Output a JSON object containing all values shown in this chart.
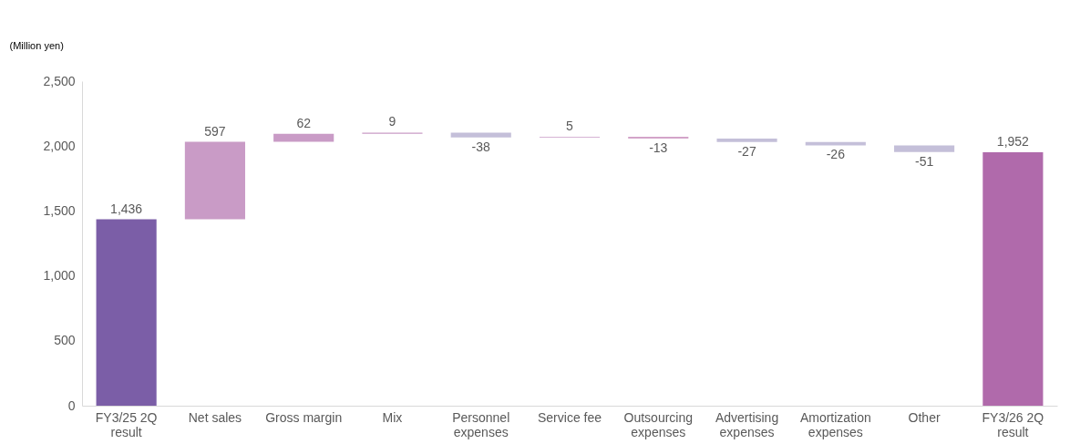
{
  "chart_data": {
    "type": "bar",
    "ylabel": "(Million yen)",
    "categories": [
      "FY3/25 2Q\nresult",
      "Net sales",
      "Gross margin",
      "Mix",
      "Personnel\nexpenses",
      "Service fee",
      "Outsourcing\nexpenses",
      "Advertising\nexpenses",
      "Amortization\nexpenses",
      "Other",
      "FY3/26 2Q\nresult"
    ],
    "values": [
      1436,
      597,
      62,
      9,
      -38,
      5,
      -13,
      -27,
      -26,
      -51,
      1952
    ],
    "base": [
      0,
      1436,
      2033,
      2095,
      2104,
      2066,
      2071,
      2058,
      2031,
      2005,
      0
    ],
    "colors": [
      "#7b5ea7",
      "#c99bc6",
      "#c99bc6",
      "#c99bc6",
      "#c4bfd9",
      "#c99bc6",
      "#d3a4c9",
      "#c4bfd9",
      "#c4bfd9",
      "#c4bfd9",
      "#b06aab"
    ],
    "value_labels": [
      "1,436",
      "597",
      "62",
      "9",
      "-38",
      "5",
      "-13",
      "-27",
      "-26",
      "-51",
      "1,952"
    ],
    "ylim": [
      0,
      2500
    ],
    "yticks": [
      0,
      {
        "value": 500,
        "label": "500"
      },
      {
        "value": 1000,
        "label": "1,000"
      },
      {
        "value": 1500,
        "label": "1,500"
      },
      {
        "value": 2000,
        "label": "2,000"
      },
      {
        "value": 2500,
        "label": "2,500"
      }
    ],
    "grid": false
  }
}
